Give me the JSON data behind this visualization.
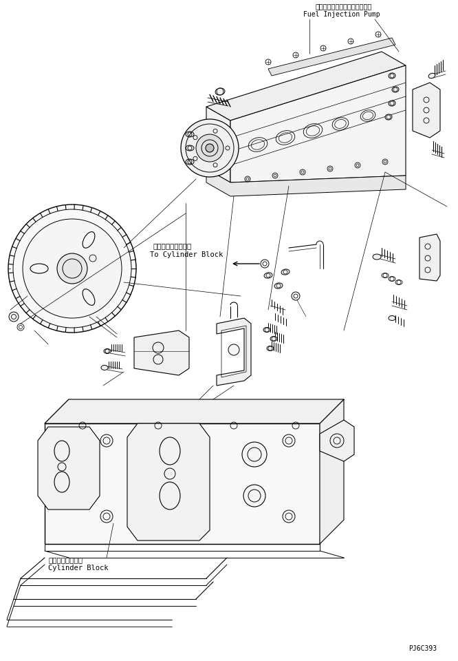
{
  "bg_color": "#ffffff",
  "line_color": "#000000",
  "label_fuel_jp": "フェルインジェクションポンプ",
  "label_fuel_en": "Fuel Injection Pump",
  "label_cylinder_jp1": "シリンダブロックへ",
  "label_cylinder_en1": "To Cylinder Block",
  "label_cylinder_jp2": "シリンダブロック",
  "label_cylinder_en2": "Cylinder Block",
  "label_code": "PJ6C393",
  "fig_width": 6.66,
  "fig_height": 9.6,
  "dpi": 100
}
